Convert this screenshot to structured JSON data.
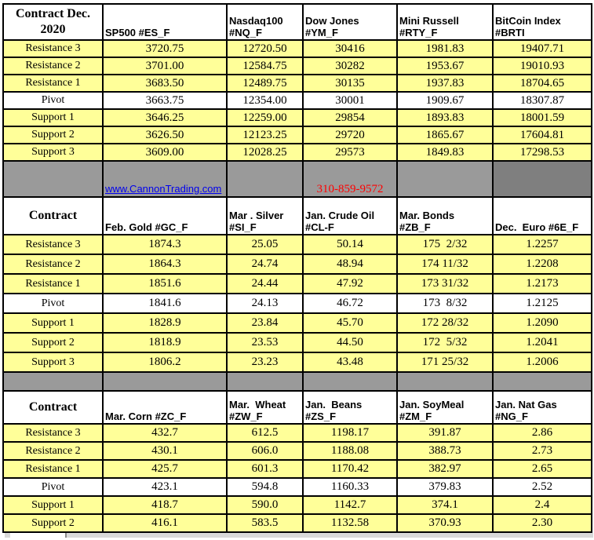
{
  "colors": {
    "cell_yellow": "#FFFF99",
    "separator_gray": "#9A9A9A",
    "separator_dark_gray": "#7F7F7F",
    "link_blue": "#0000EE",
    "phone_red": "#FF0000",
    "border_black": "#000000"
  },
  "separator": {
    "website": "www.CannonTrading.com",
    "phone": "310-859-9572"
  },
  "sections": [
    {
      "corner": "Contract Dec.\n2020",
      "columns": [
        "SP500 #ES_F",
        "Nasdaq100\n#NQ_F",
        "Dow Jones\n#YM_F",
        "Mini Russell\n#RTY_F",
        "BitCoin Index\n#BRTI"
      ],
      "rows": [
        {
          "label": "Resistance 3",
          "values": [
            "3720.75",
            "12720.50",
            "30416",
            "1981.83",
            "19407.71"
          ]
        },
        {
          "label": "Resistance 2",
          "values": [
            "3701.00",
            "12584.75",
            "30282",
            "1953.67",
            "19010.93"
          ]
        },
        {
          "label": "Resistance 1",
          "values": [
            "3683.50",
            "12489.75",
            "30135",
            "1937.83",
            "18704.65"
          ]
        },
        {
          "label": "Pivot",
          "values": [
            "3663.75",
            "12354.00",
            "30001",
            "1909.67",
            "18307.87"
          ]
        },
        {
          "label": "Support 1",
          "values": [
            "3646.25",
            "12259.00",
            "29854",
            "1893.83",
            "18001.59"
          ]
        },
        {
          "label": "Support 2",
          "values": [
            "3626.50",
            "12123.25",
            "29720",
            "1865.67",
            "17604.81"
          ]
        },
        {
          "label": "Support 3",
          "values": [
            "3609.00",
            "12028.25",
            "29573",
            "1849.83",
            "17298.53"
          ]
        }
      ]
    },
    {
      "corner": "Contract",
      "columns": [
        "Feb. Gold #GC_F",
        "Mar . Silver\n#SI_F",
        "Jan. Crude Oil\n#CL-F",
        "Mar. Bonds  #ZB_F",
        "Dec.  Euro #6E_F"
      ],
      "rows": [
        {
          "label": "Resistance 3",
          "values": [
            "1874.3",
            "25.05",
            "50.14",
            "175  2/32",
            "1.2257"
          ]
        },
        {
          "label": "Resistance 2",
          "values": [
            "1864.3",
            "24.74",
            "48.94",
            "174 11/32",
            "1.2208"
          ]
        },
        {
          "label": "Resistance 1",
          "values": [
            "1851.6",
            "24.44",
            "47.92",
            "173 31/32",
            "1.2173"
          ]
        },
        {
          "label": "Pivot",
          "values": [
            "1841.6",
            "24.13",
            "46.72",
            "173  8/32",
            "1.2125"
          ]
        },
        {
          "label": "Support 1",
          "values": [
            "1828.9",
            "23.84",
            "45.70",
            "172 28/32",
            "1.2090"
          ]
        },
        {
          "label": "Support 2",
          "values": [
            "1818.9",
            "23.53",
            "44.50",
            "172  5/32",
            "1.2041"
          ]
        },
        {
          "label": "Support 3",
          "values": [
            "1806.2",
            "23.23",
            "43.48",
            "171 25/32",
            "1.2006"
          ]
        }
      ]
    },
    {
      "corner": "Contract",
      "columns": [
        "Mar. Corn #ZC_F",
        "Mar.  Wheat\n#ZW_F",
        "Jan.  Beans\n#ZS_F",
        "Jan. SoyMeal\n#ZM_F",
        "Jan. Nat Gas\n#NG_F"
      ],
      "rows": [
        {
          "label": "Resistance 3",
          "values": [
            "432.7",
            "612.5",
            "1198.17",
            "391.87",
            "2.86"
          ]
        },
        {
          "label": "Resistance 2",
          "values": [
            "430.1",
            "606.0",
            "1188.08",
            "388.73",
            "2.73"
          ]
        },
        {
          "label": "Resistance 1",
          "values": [
            "425.7",
            "601.3",
            "1170.42",
            "382.97",
            "2.65"
          ]
        },
        {
          "label": "Pivot",
          "values": [
            "423.1",
            "594.8",
            "1160.33",
            "379.83",
            "2.52"
          ]
        },
        {
          "label": "Support 1",
          "values": [
            "418.7",
            "590.0",
            "1142.7",
            "374.1",
            "2.4"
          ]
        },
        {
          "label": "Support 2",
          "values": [
            "416.1",
            "583.5",
            "1132.58",
            "370.93",
            "2.30"
          ]
        }
      ]
    }
  ]
}
